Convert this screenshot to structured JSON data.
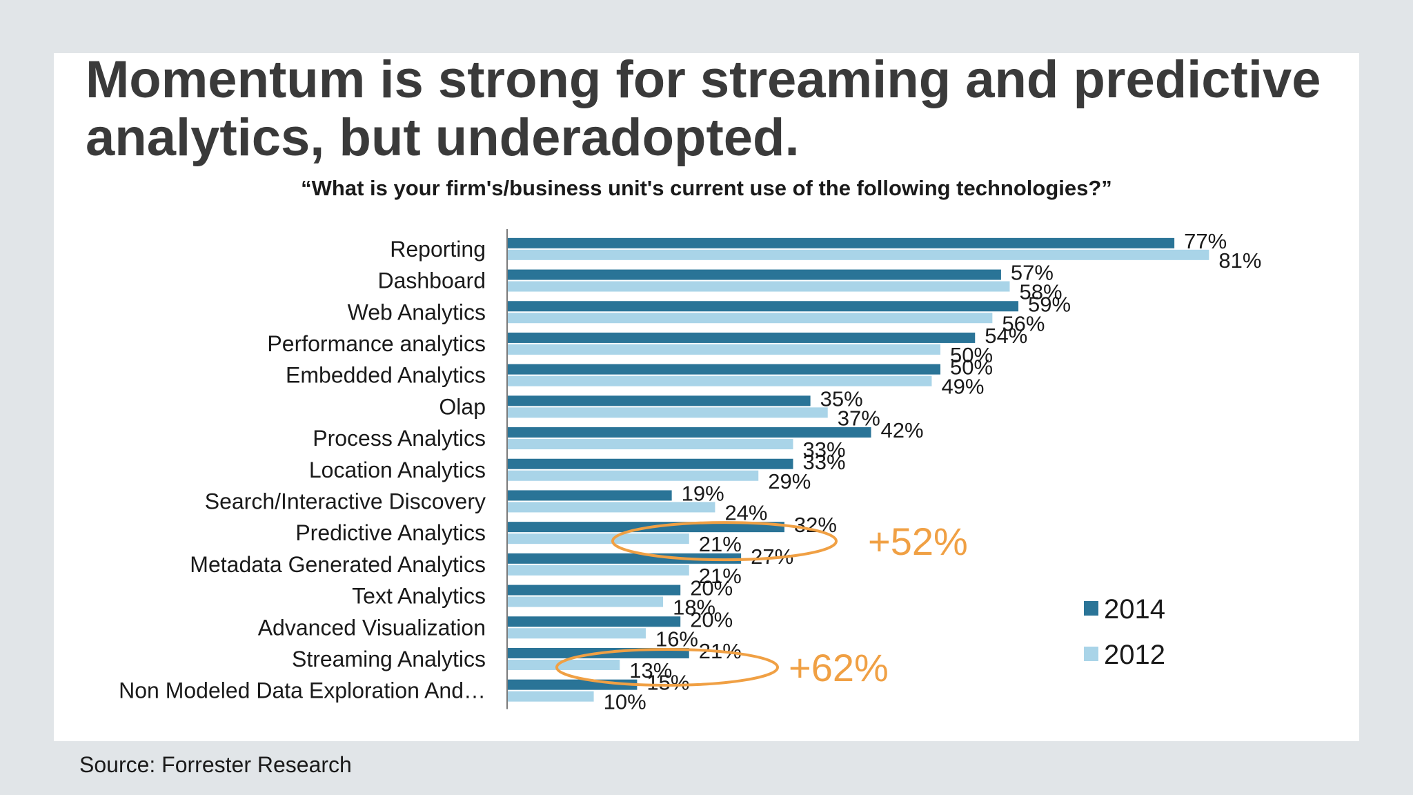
{
  "title": {
    "line1": "Momentum is strong for streaming and predictive",
    "line2": "analytics, but underadopted."
  },
  "source": "Source: Forrester Research",
  "colors": {
    "series_2014": "#2a7497",
    "series_2012": "#a9d4e8",
    "annotation": "#f0a044",
    "background": "#e1e5e8"
  },
  "chart_data": {
    "type": "bar",
    "orientation": "horizontal",
    "title": "“What is your firm's/business unit's current use of the following technologies?”",
    "categories": [
      "Reporting",
      "Dashboard",
      "Web Analytics",
      "Performance analytics",
      "Embedded Analytics",
      "Olap",
      "Process Analytics",
      "Location Analytics",
      "Search/Interactive Discovery",
      "Predictive Analytics",
      "Metadata Generated Analytics",
      "Text Analytics",
      "Advanced Visualization",
      "Streaming Analytics",
      "Non Modeled Data Exploration And…"
    ],
    "series": [
      {
        "name": "2014",
        "values": [
          77,
          57,
          59,
          54,
          50,
          35,
          42,
          33,
          19,
          32,
          27,
          20,
          20,
          21,
          15
        ],
        "labels": [
          "77%",
          "57%",
          "59%",
          "54%",
          "50%",
          "35%",
          "42%",
          "33%",
          "19%",
          "32%",
          "27%",
          "20%",
          "20%",
          "21%",
          "15%"
        ]
      },
      {
        "name": "2012",
        "values": [
          81,
          58,
          56,
          50,
          49,
          37,
          33,
          29,
          24,
          21,
          21,
          18,
          16,
          13,
          10
        ],
        "labels": [
          "81%",
          "58%",
          "56%",
          "50%",
          "49%",
          "37%",
          "33%",
          "29%",
          "24%",
          "21%",
          "21%",
          "18%",
          "16%",
          "13%",
          "10%"
        ]
      }
    ],
    "annotations": [
      {
        "category": "Predictive Analytics",
        "text": "+52%"
      },
      {
        "category": "Streaming Analytics",
        "text": "+62%"
      }
    ],
    "legend": {
      "placement": "right",
      "items": [
        "2014",
        "2012"
      ]
    },
    "grid": false
  }
}
